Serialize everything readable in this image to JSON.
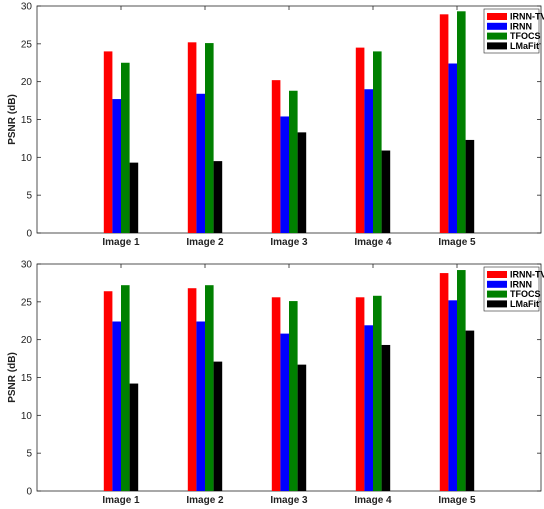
{
  "chart_data": [
    {
      "type": "bar",
      "categories": [
        "Image 1",
        "Image 2",
        "Image 3",
        "Image 4",
        "Image 5"
      ],
      "series": [
        {
          "name": "IRNN-TV",
          "color": "#ff0000",
          "values": [
            24.0,
            25.2,
            20.2,
            24.5,
            28.9
          ]
        },
        {
          "name": "IRNN",
          "color": "#0000ff",
          "values": [
            17.7,
            18.4,
            15.4,
            19.0,
            22.4
          ]
        },
        {
          "name": "TFOCS",
          "color": "#008000",
          "values": [
            22.5,
            25.1,
            18.8,
            24.0,
            29.3
          ]
        },
        {
          "name": "LMaFit",
          "color": "#000000",
          "values": [
            9.3,
            9.5,
            13.3,
            10.9,
            12.3
          ]
        }
      ],
      "xlabel": "",
      "ylabel": "PSNR (dB)",
      "yticks": [
        "0",
        "5",
        "10",
        "15",
        "20",
        "25",
        "30"
      ],
      "ylim": [
        0,
        30
      ],
      "legend_position": "top-right",
      "grid": false
    },
    {
      "type": "bar",
      "categories": [
        "Image 1",
        "Image 2",
        "Image 3",
        "Image 4",
        "Image 5"
      ],
      "series": [
        {
          "name": "IRNN-TV",
          "color": "#ff0000",
          "values": [
            26.4,
            26.8,
            25.6,
            25.6,
            28.8
          ]
        },
        {
          "name": "IRNN",
          "color": "#0000ff",
          "values": [
            22.4,
            22.4,
            20.8,
            21.9,
            25.2
          ]
        },
        {
          "name": "TFOCS",
          "color": "#008000",
          "values": [
            27.2,
            27.2,
            25.1,
            25.8,
            29.2
          ]
        },
        {
          "name": "LMaFit",
          "color": "#000000",
          "values": [
            14.2,
            17.1,
            16.7,
            19.3,
            21.2
          ]
        }
      ],
      "xlabel": "",
      "ylabel": "PSNR (dB)",
      "yticks": [
        "0",
        "5",
        "10",
        "15",
        "20",
        "25",
        "30"
      ],
      "ylim": [
        0,
        30
      ],
      "legend_position": "top-right",
      "grid": false
    }
  ]
}
